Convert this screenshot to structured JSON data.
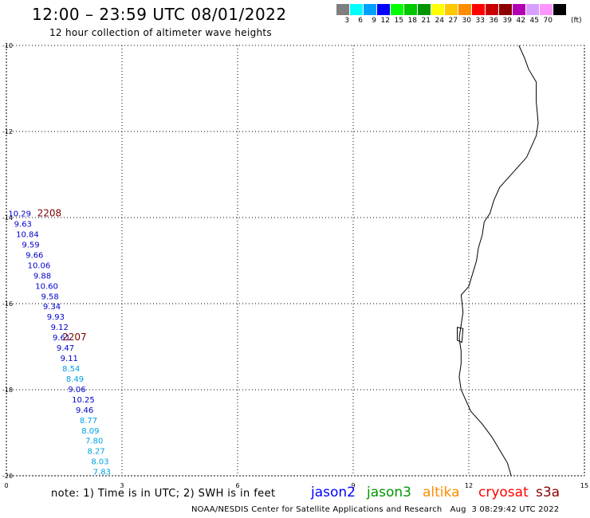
{
  "title": "12:00 – 23:59 UTC 08/01/2022",
  "subtitle": "12 hour collection of altimeter wave heights",
  "color_scale": {
    "labels": [
      "3",
      "6",
      "9",
      "12",
      "15",
      "18",
      "21",
      "24",
      "27",
      "30",
      "33",
      "36",
      "39",
      "42",
      "45",
      "70"
    ],
    "unit": "(ft)",
    "colors": [
      "#7f7f7f",
      "#00ffff",
      "#00a0ff",
      "#0000ff",
      "#00ff00",
      "#00c800",
      "#009600",
      "#ffff00",
      "#ffc800",
      "#ff8c00",
      "#ff0000",
      "#c80000",
      "#8c0000",
      "#b400b4",
      "#d7a0ff",
      "#ff96ff",
      "#000000"
    ]
  },
  "axes": {
    "lat_labels": [
      "-10",
      "-12",
      "-14",
      "-16",
      "-18",
      "-20"
    ],
    "lon_labels": [
      "0",
      "3",
      "6",
      "9",
      "12",
      "15"
    ]
  },
  "observations": [
    {
      "lon": 0.05,
      "lat": -13.9,
      "value": "10.29",
      "color": "#0000cc"
    },
    {
      "lon": 0.2,
      "lat": -14.14,
      "value": "9.63",
      "color": "#0000cc"
    },
    {
      "lon": 0.25,
      "lat": -14.38,
      "value": "10.84",
      "color": "#0000cc"
    },
    {
      "lon": 0.4,
      "lat": -14.62,
      "value": "9.59",
      "color": "#0000cc"
    },
    {
      "lon": 0.5,
      "lat": -14.86,
      "value": "9.66",
      "color": "#0000cc"
    },
    {
      "lon": 0.55,
      "lat": -15.1,
      "value": "10.06",
      "color": "#0000cc"
    },
    {
      "lon": 0.7,
      "lat": -15.34,
      "value": "9.88",
      "color": "#0000cc"
    },
    {
      "lon": 0.75,
      "lat": -15.58,
      "value": "10.60",
      "color": "#0000cc"
    },
    {
      "lon": 0.9,
      "lat": -15.82,
      "value": "9.58",
      "color": "#0000cc"
    },
    {
      "lon": 0.95,
      "lat": -16.06,
      "value": "9.34",
      "color": "#0000cc"
    },
    {
      "lon": 1.05,
      "lat": -16.3,
      "value": "9.93",
      "color": "#0000cc"
    },
    {
      "lon": 1.15,
      "lat": -16.54,
      "value": "9.12",
      "color": "#0000cc"
    },
    {
      "lon": 1.2,
      "lat": -16.78,
      "value": "9.61",
      "color": "#0000cc"
    },
    {
      "lon": 1.3,
      "lat": -17.02,
      "value": "9.47",
      "color": "#0000cc"
    },
    {
      "lon": 1.4,
      "lat": -17.26,
      "value": "9.11",
      "color": "#0000cc"
    },
    {
      "lon": 1.45,
      "lat": -17.5,
      "value": "8.54",
      "color": "#00a0e0"
    },
    {
      "lon": 1.55,
      "lat": -17.74,
      "value": "8.49",
      "color": "#00a0e0"
    },
    {
      "lon": 1.6,
      "lat": -17.98,
      "value": "9.06",
      "color": "#0000cc"
    },
    {
      "lon": 1.7,
      "lat": -18.22,
      "value": "10.25",
      "color": "#0000cc"
    },
    {
      "lon": 1.8,
      "lat": -18.46,
      "value": "9.46",
      "color": "#0000cc"
    },
    {
      "lon": 1.9,
      "lat": -18.7,
      "value": "8.77",
      "color": "#00a0e0"
    },
    {
      "lon": 1.95,
      "lat": -18.94,
      "value": "8.09",
      "color": "#00a0e0"
    },
    {
      "lon": 2.05,
      "lat": -19.18,
      "value": "7.80",
      "color": "#00a0e0"
    },
    {
      "lon": 2.1,
      "lat": -19.42,
      "value": "8.27",
      "color": "#00a0e0"
    },
    {
      "lon": 2.2,
      "lat": -19.66,
      "value": "8.03",
      "color": "#00a0e0"
    },
    {
      "lon": 2.25,
      "lat": -19.9,
      "value": "7.83",
      "color": "#00a0e0"
    }
  ],
  "time_labels": [
    {
      "lon": 0.8,
      "lat": -13.9,
      "text": "2208",
      "color": "#7a0000"
    },
    {
      "lon": 1.45,
      "lat": -16.78,
      "text": "2207",
      "color": "#7a0000"
    }
  ],
  "coastline": [
    [
      13.3,
      -10.0
    ],
    [
      13.45,
      -10.3
    ],
    [
      13.55,
      -10.55
    ],
    [
      13.75,
      -10.85
    ],
    [
      13.75,
      -11.3
    ],
    [
      13.8,
      -11.8
    ],
    [
      13.75,
      -12.1
    ],
    [
      13.6,
      -12.4
    ],
    [
      13.5,
      -12.6
    ],
    [
      13.3,
      -12.8
    ],
    [
      13.0,
      -13.1
    ],
    [
      12.8,
      -13.3
    ],
    [
      12.65,
      -13.6
    ],
    [
      12.55,
      -13.9
    ],
    [
      12.4,
      -14.1
    ],
    [
      12.35,
      -14.4
    ],
    [
      12.25,
      -14.7
    ],
    [
      12.2,
      -15.0
    ],
    [
      12.1,
      -15.3
    ],
    [
      12.0,
      -15.6
    ],
    [
      11.8,
      -15.8
    ],
    [
      11.85,
      -16.2
    ],
    [
      11.8,
      -16.5
    ],
    [
      11.75,
      -16.8
    ],
    [
      11.8,
      -17.1
    ],
    [
      11.8,
      -17.4
    ],
    [
      11.75,
      -17.7
    ],
    [
      11.8,
      -18.0
    ],
    [
      11.9,
      -18.2
    ],
    [
      12.05,
      -18.5
    ],
    [
      12.35,
      -18.8
    ],
    [
      12.6,
      -19.1
    ],
    [
      12.8,
      -19.4
    ],
    [
      13.0,
      -19.7
    ],
    [
      13.1,
      -20.0
    ]
  ],
  "island": [
    [
      11.7,
      -16.55
    ],
    [
      11.85,
      -16.58
    ],
    [
      11.82,
      -16.9
    ],
    [
      11.7,
      -16.85
    ]
  ],
  "note": "note: 1) Time is in UTC; 2) SWH is in feet",
  "satellites": [
    {
      "name": "jason2",
      "color": "#0000ff"
    },
    {
      "name": "jason3",
      "color": "#009600"
    },
    {
      "name": "altika",
      "color": "#ff8c00"
    },
    {
      "name": "cryosat",
      "color": "#ff0000"
    },
    {
      "name": "s3a",
      "color": "#8c0000"
    }
  ],
  "credit": "NOAA/NESDIS Center for Satellite Applications and Research",
  "timestamp": "Aug  3 08:29:42 UTC 2022"
}
